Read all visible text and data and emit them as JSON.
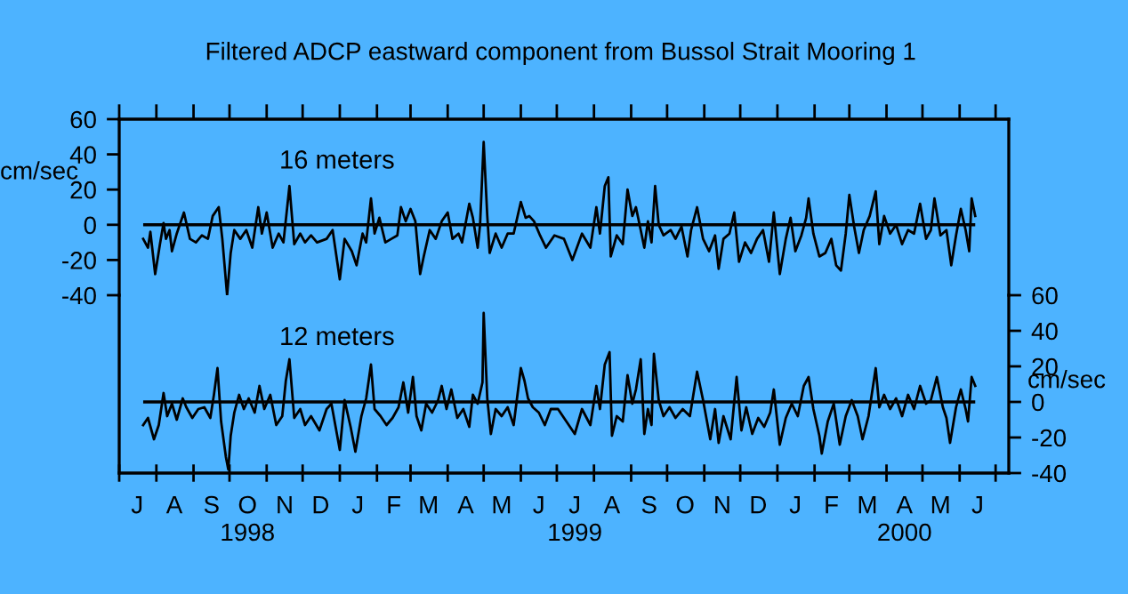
{
  "chart_data": [
    {
      "type": "line",
      "title": "Filtered ADCP eastward component from Bussol Strait Mooring 1",
      "ylabel": "cm/sec",
      "annotations": [
        "16 meters"
      ],
      "tick_labels": "y",
      "xlim": [
        "1998-07-01",
        "2000-07-12"
      ],
      "ylim": [
        -40,
        60
      ],
      "yticks": [
        -40,
        -20,
        0,
        20,
        40,
        60
      ],
      "xticks": [
        {
          "value": "1998-07-01",
          "label": null
        },
        {
          "value": "1998-08-01",
          "label": null
        },
        {
          "value": "1998-09-01",
          "label": null
        },
        {
          "value": "1998-10-01",
          "label": null
        },
        {
          "value": "1998-11-01",
          "label": null
        },
        {
          "value": "1998-12-01",
          "label": null
        },
        {
          "value": "1999-01-01",
          "label": null
        },
        {
          "value": "1999-02-01",
          "label": null
        },
        {
          "value": "1999-03-01",
          "label": null
        },
        {
          "value": "1999-04-01",
          "label": null
        },
        {
          "value": "1999-05-01",
          "label": null
        },
        {
          "value": "1999-06-01",
          "label": null
        },
        {
          "value": "1999-07-01",
          "label": null
        },
        {
          "value": "1999-08-01",
          "label": null
        },
        {
          "value": "1999-09-01",
          "label": null
        },
        {
          "value": "1999-10-01",
          "label": null
        },
        {
          "value": "1999-11-01",
          "label": null
        },
        {
          "value": "1999-12-01",
          "label": null
        },
        {
          "value": "2000-01-01",
          "label": null
        },
        {
          "value": "2000-02-01",
          "label": null
        },
        {
          "value": "2000-03-01",
          "label": null
        },
        {
          "value": "2000-04-01",
          "label": null
        },
        {
          "value": "2000-05-01",
          "label": null
        },
        {
          "value": "2000-06-01",
          "label": null
        },
        {
          "value": "2000-07-01",
          "label": null
        }
      ],
      "ref_lines": [
        {
          "axis": "y",
          "value": 0,
          "color": "#000000"
        }
      ],
      "series": [
        {
          "color": "#000000",
          "x": [
            "1998-07-21",
            "1998-07-25",
            "1998-07-27",
            "1998-07-31",
            "1998-08-04",
            "1998-08-07",
            "1998-08-09",
            "1998-08-12",
            "1998-08-14",
            "1998-08-18",
            "1998-08-24",
            "1998-08-29",
            "1998-09-03",
            "1998-09-08",
            "1998-09-13",
            "1998-09-17",
            "1998-09-22",
            "1998-09-25",
            "1998-09-29",
            "1998-10-02",
            "1998-10-05",
            "1998-10-10",
            "1998-10-15",
            "1998-10-20",
            "1998-10-25",
            "1998-10-28",
            "1998-11-01",
            "1998-11-06",
            "1998-11-11",
            "1998-11-15",
            "1998-11-20",
            "1998-11-24",
            "1998-11-29",
            "1998-12-03",
            "1998-12-08",
            "1998-12-13",
            "1998-12-21",
            "1998-12-26",
            "1999-01-01",
            "1999-01-05",
            "1999-01-11",
            "1999-01-15",
            "1999-01-20",
            "1999-01-23",
            "1999-01-27",
            "1999-01-30",
            "1999-02-03",
            "1999-02-08",
            "1999-02-13",
            "1999-02-18",
            "1999-02-21",
            "1999-02-25",
            "1999-03-01",
            "1999-03-05",
            "1999-03-09",
            "1999-03-12",
            "1999-03-17",
            "1999-03-22",
            "1999-03-27",
            "1999-04-01",
            "1999-04-05",
            "1999-04-10",
            "1999-04-13",
            "1999-04-19",
            "1999-04-22",
            "1999-04-26",
            "1999-04-28",
            "1999-05-01",
            "1999-05-04",
            "1999-05-06",
            "1999-05-11",
            "1999-05-16",
            "1999-05-21",
            "1999-05-26",
            "1999-06-01",
            "1999-06-05",
            "1999-06-08",
            "1999-06-12",
            "1999-06-17",
            "1999-06-22",
            "1999-06-29",
            "1999-07-07",
            "1999-07-14",
            "1999-07-22",
            "1999-07-29",
            "1999-08-03",
            "1999-08-06",
            "1999-08-10",
            "1999-08-13",
            "1999-08-15",
            "1999-08-20",
            "1999-08-25",
            "1999-08-29",
            "1999-09-02",
            "1999-09-05",
            "1999-09-09",
            "1999-09-12",
            "1999-09-15",
            "1999-09-18",
            "1999-09-21",
            "1999-09-24",
            "1999-09-28",
            "1999-10-04",
            "1999-10-08",
            "1999-10-13",
            "1999-10-18",
            "1999-10-21",
            "1999-10-26",
            "1999-10-31",
            "1999-11-05",
            "1999-11-10",
            "1999-11-13",
            "1999-11-17",
            "1999-11-22",
            "1999-11-26",
            "1999-11-30",
            "1999-12-05",
            "1999-12-10",
            "1999-12-15",
            "1999-12-20",
            "1999-12-25",
            "1999-12-29",
            "2000-01-03",
            "2000-01-08",
            "2000-01-12",
            "2000-01-16",
            "2000-01-21",
            "2000-01-25",
            "2000-01-27",
            "2000-01-31",
            "2000-02-05",
            "2000-02-10",
            "2000-02-15",
            "2000-02-19",
            "2000-02-23",
            "2000-02-27",
            "2000-03-01",
            "2000-03-05",
            "2000-03-09",
            "2000-03-13",
            "2000-03-18",
            "2000-03-23",
            "2000-03-26",
            "2000-03-30",
            "2000-04-04",
            "2000-04-09",
            "2000-04-14",
            "2000-04-19",
            "2000-04-24",
            "2000-04-29",
            "2000-05-04",
            "2000-05-08",
            "2000-05-11",
            "2000-05-16",
            "2000-05-21",
            "2000-05-25",
            "2000-05-29",
            "2000-06-02",
            "2000-06-06",
            "2000-06-09",
            "2000-06-11",
            "2000-06-14"
          ],
          "values": [
            -8,
            -13,
            -4,
            -28,
            -11,
            1,
            -8,
            -3,
            -15,
            -5,
            7,
            -8,
            -10,
            -6,
            -8,
            5,
            10,
            -8,
            -40,
            -16,
            -3,
            -8,
            -3,
            -13,
            10,
            -5,
            7,
            -13,
            -5,
            -10,
            22,
            -11,
            -5,
            -10,
            -6,
            -10,
            -8,
            -3,
            -31,
            -8,
            -15,
            -23,
            -5,
            -10,
            15,
            -5,
            4,
            -10,
            -8,
            -6,
            10,
            2,
            9,
            2,
            -28,
            -18,
            -3,
            -8,
            2,
            7,
            -8,
            -5,
            -10,
            12,
            4,
            -13,
            0,
            47,
            5,
            -16,
            -5,
            -13,
            -5,
            -5,
            13,
            4,
            5,
            2,
            -6,
            -13,
            -6,
            -8,
            -20,
            -5,
            -13,
            10,
            -5,
            22,
            27,
            -18,
            -6,
            -11,
            20,
            5,
            10,
            -3,
            -13,
            2,
            -10,
            22,
            0,
            -6,
            -3,
            -8,
            -1,
            -18,
            -3,
            10,
            -8,
            -15,
            -6,
            -25,
            -8,
            -5,
            7,
            -21,
            -10,
            -16,
            -8,
            -3,
            -21,
            7,
            -28,
            -8,
            4,
            -15,
            -6,
            4,
            15,
            -5,
            -18,
            -16,
            -8,
            -23,
            -26,
            -5,
            17,
            -1,
            -16,
            -3,
            5,
            19,
            -11,
            5,
            -5,
            0,
            -11,
            -3,
            -5,
            12,
            -8,
            -3,
            15,
            -6,
            -3,
            -23,
            -6,
            9,
            -3,
            -15,
            15,
            5
          ]
        }
      ]
    },
    {
      "type": "line",
      "y2label": "cm/sec",
      "annotations": [
        "12 meters"
      ],
      "xlim": [
        "1998-07-01",
        "2000-07-12"
      ],
      "y2lim": [
        -40,
        60
      ],
      "y2ticks": [
        -40,
        -20,
        0,
        20,
        40,
        60
      ],
      "xticks": [
        {
          "value": "1998-07-01",
          "label": null
        },
        {
          "value": "1998-07-16",
          "label": "J"
        },
        {
          "value": "1998-08-01",
          "label": null
        },
        {
          "value": "1998-08-16",
          "label": "A"
        },
        {
          "value": "1998-09-01",
          "label": null
        },
        {
          "value": "1998-09-16",
          "label": "S"
        },
        {
          "value": "1998-10-01",
          "label": null
        },
        {
          "value": "1998-10-16",
          "label": "O\n1998"
        },
        {
          "value": "1998-11-01",
          "label": null
        },
        {
          "value": "1998-11-16",
          "label": "N"
        },
        {
          "value": "1998-12-01",
          "label": null
        },
        {
          "value": "1998-12-16",
          "label": "D"
        },
        {
          "value": "1999-01-01",
          "label": null
        },
        {
          "value": "1999-01-16",
          "label": "J"
        },
        {
          "value": "1999-02-01",
          "label": null
        },
        {
          "value": "1999-02-15",
          "label": "F"
        },
        {
          "value": "1999-03-01",
          "label": null
        },
        {
          "value": "1999-03-16",
          "label": "M"
        },
        {
          "value": "1999-04-01",
          "label": null
        },
        {
          "value": "1999-04-16",
          "label": "A"
        },
        {
          "value": "1999-05-01",
          "label": null
        },
        {
          "value": "1999-05-16",
          "label": "M"
        },
        {
          "value": "1999-06-01",
          "label": null
        },
        {
          "value": "1999-06-16",
          "label": "J"
        },
        {
          "value": "1999-07-01",
          "label": null
        },
        {
          "value": "1999-07-16",
          "label": "J\n1999"
        },
        {
          "value": "1999-08-01",
          "label": null
        },
        {
          "value": "1999-08-16",
          "label": "A"
        },
        {
          "value": "1999-09-01",
          "label": null
        },
        {
          "value": "1999-09-16",
          "label": "S"
        },
        {
          "value": "1999-10-01",
          "label": null
        },
        {
          "value": "1999-10-16",
          "label": "O"
        },
        {
          "value": "1999-11-01",
          "label": null
        },
        {
          "value": "1999-11-16",
          "label": "N"
        },
        {
          "value": "1999-12-01",
          "label": null
        },
        {
          "value": "1999-12-16",
          "label": "D"
        },
        {
          "value": "2000-01-01",
          "label": null
        },
        {
          "value": "2000-01-16",
          "label": "J"
        },
        {
          "value": "2000-02-01",
          "label": null
        },
        {
          "value": "2000-02-15",
          "label": "F"
        },
        {
          "value": "2000-03-01",
          "label": null
        },
        {
          "value": "2000-03-16",
          "label": "M"
        },
        {
          "value": "2000-04-01",
          "label": null
        },
        {
          "value": "2000-04-16",
          "label": "A\n2000"
        },
        {
          "value": "2000-05-01",
          "label": null
        },
        {
          "value": "2000-05-16",
          "label": "M"
        },
        {
          "value": "2000-06-01",
          "label": null
        },
        {
          "value": "2000-06-16",
          "label": "J"
        },
        {
          "value": "2000-07-01",
          "label": null
        }
      ],
      "ref_lines": [
        {
          "axis": "y2",
          "value": 0,
          "color": "#000000"
        }
      ],
      "series": [
        {
          "color": "#000000",
          "axis": "y2",
          "x": [
            "1998-07-21",
            "1998-07-25",
            "1998-07-30",
            "1998-08-03",
            "1998-08-07",
            "1998-08-10",
            "1998-08-14",
            "1998-08-18",
            "1998-08-23",
            "1998-08-26",
            "1998-08-31",
            "1998-09-05",
            "1998-09-10",
            "1998-09-15",
            "1998-09-18",
            "1998-09-21",
            "1998-09-24",
            "1998-09-28",
            "1998-09-30",
            "1998-10-02",
            "1998-10-05",
            "1998-10-09",
            "1998-10-13",
            "1998-10-17",
            "1998-10-22",
            "1998-10-26",
            "1998-10-30",
            "1998-11-04",
            "1998-11-09",
            "1998-11-14",
            "1998-11-17",
            "1998-11-20",
            "1998-11-24",
            "1998-11-29",
            "1998-12-03",
            "1998-12-08",
            "1998-12-15",
            "1998-12-21",
            "1998-12-25",
            "1999-01-01",
            "1999-01-05",
            "1999-01-10",
            "1999-01-14",
            "1999-01-19",
            "1999-01-23",
            "1999-01-27",
            "1999-01-30",
            "1999-02-04",
            "1999-02-09",
            "1999-02-14",
            "1999-02-19",
            "1999-02-23",
            "1999-02-27",
            "1999-03-03",
            "1999-03-06",
            "1999-03-10",
            "1999-03-14",
            "1999-03-19",
            "1999-03-24",
            "1999-03-27",
            "1999-03-31",
            "1999-04-04",
            "1999-04-09",
            "1999-04-14",
            "1999-04-19",
            "1999-04-22",
            "1999-04-26",
            "1999-04-30",
            "1999-05-01",
            "1999-05-04",
            "1999-05-07",
            "1999-05-11",
            "1999-05-16",
            "1999-05-21",
            "1999-05-26",
            "1999-06-01",
            "1999-06-04",
            "1999-06-07",
            "1999-06-11",
            "1999-06-16",
            "1999-06-21",
            "1999-06-26",
            "1999-07-02",
            "1999-07-09",
            "1999-07-16",
            "1999-07-22",
            "1999-07-29",
            "1999-08-03",
            "1999-08-06",
            "1999-08-10",
            "1999-08-14",
            "1999-08-16",
            "1999-08-20",
            "1999-08-25",
            "1999-08-29",
            "1999-09-02",
            "1999-09-05",
            "1999-09-09",
            "1999-09-12",
            "1999-09-15",
            "1999-09-18",
            "1999-09-20",
            "1999-09-24",
            "1999-09-28",
            "1999-10-03",
            "1999-10-08",
            "1999-10-14",
            "1999-10-20",
            "1999-10-26",
            "1999-10-31",
            "1999-11-06",
            "1999-11-10",
            "1999-11-13",
            "1999-11-17",
            "1999-11-23",
            "1999-11-28",
            "1999-12-02",
            "1999-12-06",
            "1999-12-11",
            "1999-12-16",
            "1999-12-21",
            "1999-12-26",
            "1999-12-29",
            "2000-01-03",
            "2000-01-08",
            "2000-01-13",
            "2000-01-18",
            "2000-01-23",
            "2000-01-27",
            "2000-01-31",
            "2000-02-05",
            "2000-02-07",
            "2000-02-12",
            "2000-02-17",
            "2000-02-22",
            "2000-02-27",
            "2000-03-03",
            "2000-03-08",
            "2000-03-12",
            "2000-03-17",
            "2000-03-23",
            "2000-03-26",
            "2000-03-30",
            "2000-04-04",
            "2000-04-09",
            "2000-04-14",
            "2000-04-19",
            "2000-04-24",
            "2000-04-29",
            "2000-05-04",
            "2000-05-08",
            "2000-05-13",
            "2000-05-18",
            "2000-05-21",
            "2000-05-24",
            "2000-05-29",
            "2000-06-02",
            "2000-06-06",
            "2000-06-08",
            "2000-06-11",
            "2000-06-14"
          ],
          "values": [
            -13,
            -9,
            -21,
            -13,
            5,
            -8,
            -1,
            -10,
            2,
            -3,
            -9,
            -4,
            -3,
            -9,
            4,
            19,
            -11,
            -31,
            -38,
            -19,
            -6,
            4,
            -4,
            2,
            -6,
            9,
            -4,
            4,
            -13,
            -8,
            12,
            24,
            -9,
            -4,
            -13,
            -8,
            -16,
            -4,
            -1,
            -27,
            1,
            -14,
            -28,
            -8,
            2,
            21,
            -4,
            -8,
            -13,
            -9,
            -3,
            11,
            -6,
            14,
            -8,
            -16,
            -1,
            -6,
            1,
            9,
            -4,
            7,
            -9,
            -4,
            -14,
            4,
            -1,
            11,
            50,
            2,
            -18,
            -4,
            -8,
            -3,
            -13,
            19,
            12,
            2,
            -3,
            -6,
            -13,
            -4,
            -4,
            -11,
            -18,
            -4,
            -13,
            9,
            -4,
            21,
            28,
            -19,
            -8,
            -11,
            15,
            -1,
            7,
            24,
            -18,
            -4,
            -13,
            27,
            1,
            -8,
            -3,
            -9,
            -4,
            -8,
            17,
            1,
            -21,
            -4,
            -23,
            -8,
            -21,
            14,
            -16,
            -3,
            -18,
            -9,
            -14,
            -6,
            7,
            -24,
            -9,
            -1,
            -8,
            9,
            14,
            -4,
            -19,
            -29,
            -11,
            -1,
            -24,
            -8,
            1,
            -8,
            -21,
            -8,
            19,
            -3,
            4,
            -4,
            2,
            -8,
            4,
            -4,
            9,
            -1,
            1,
            14,
            -3,
            -9,
            -23,
            -3,
            7,
            -4,
            -11,
            14,
            9
          ]
        }
      ]
    }
  ]
}
